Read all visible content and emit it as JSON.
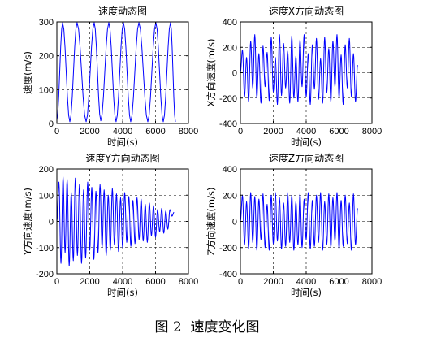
{
  "figure": {
    "caption": "图 2  速度变化图"
  },
  "chart_data": [
    {
      "type": "line",
      "title": "速度动态图",
      "xlabel": "时间(s)",
      "ylabel": "速度(m/s)",
      "xlim": [
        0,
        8000
      ],
      "ylim": [
        0,
        300
      ],
      "xticks": [
        0,
        2000,
        4000,
        6000,
        8000
      ],
      "yticks": [
        0,
        100,
        200,
        300
      ],
      "grid": true,
      "line_color": "#0000ff",
      "series": [
        {
          "x": [
            0,
            350,
            790,
            1230,
            1780,
            2270,
            2670,
            3160,
            3600,
            4050,
            4490,
            4990,
            5530,
            6020,
            6470,
            6910,
            7210
          ],
          "y": [
            10,
            298,
            5,
            298,
            5,
            298,
            8,
            298,
            5,
            298,
            5,
            298,
            5,
            298,
            5,
            298,
            5
          ]
        }
      ]
    },
    {
      "type": "line",
      "title": "速度X方向动态图",
      "xlabel": "时间(s)",
      "ylabel": "X方向速度(m/s)",
      "xlim": [
        0,
        8000
      ],
      "ylim": [
        -400,
        400
      ],
      "xticks": [
        0,
        2000,
        4000,
        6000,
        8000
      ],
      "yticks": [
        -400,
        -200,
        0,
        200,
        400
      ],
      "grid": true,
      "line_color": "#0000ff",
      "series": [
        {
          "x": [
            0,
            125,
            250,
            375,
            500,
            625,
            750,
            875,
            1000,
            1125,
            1250,
            1375,
            1500,
            1625,
            1750,
            1875,
            2000,
            2125,
            2250,
            2375,
            2500,
            2625,
            2750,
            2875,
            3000,
            3125,
            3250,
            3375,
            3500,
            3625,
            3750,
            3875,
            4000,
            4125,
            4250,
            4375,
            4500,
            4625,
            4750,
            4875,
            5000,
            5125,
            5250,
            5375,
            5500,
            5625,
            5750,
            5875,
            6000,
            6125,
            6250,
            6375,
            6500,
            6625,
            6750,
            6875,
            7000,
            7125
          ],
          "y": [
            0,
            180,
            -190,
            120,
            -230,
            250,
            -120,
            300,
            -200,
            150,
            -240,
            210,
            -110,
            160,
            -220,
            280,
            -150,
            120,
            -250,
            300,
            -180,
            230,
            -120,
            170,
            -240,
            290,
            -200,
            130,
            -230,
            260,
            -110,
            300,
            -190,
            150,
            -250,
            220,
            -130,
            270,
            -210,
            110,
            -240,
            280,
            -160,
            190,
            -230,
            250,
            -110,
            300,
            -200,
            140,
            -250,
            220,
            -120,
            270,
            -190,
            150,
            -230,
            60
          ]
        }
      ]
    },
    {
      "type": "line",
      "title": "速度Y方向动态图",
      "xlabel": "时间(s)",
      "ylabel": "Y方向速度(m/s)",
      "xlim": [
        0,
        8000
      ],
      "ylim": [
        -200,
        200
      ],
      "xticks": [
        0,
        2000,
        4000,
        6000,
        8000
      ],
      "yticks": [
        -200,
        -100,
        0,
        100,
        200
      ],
      "grid": true,
      "line_color": "#0000ff",
      "series": [
        {
          "x": [
            0,
            125,
            250,
            375,
            500,
            625,
            750,
            875,
            1000,
            1125,
            1250,
            1375,
            1500,
            1625,
            1750,
            1875,
            2000,
            2125,
            2250,
            2375,
            2500,
            2625,
            2750,
            2875,
            3000,
            3125,
            3250,
            3375,
            3500,
            3625,
            3750,
            3875,
            4000,
            4125,
            4250,
            4375,
            4500,
            4625,
            4750,
            4875,
            5000,
            5125,
            5250,
            5375,
            5500,
            5625,
            5750,
            5875,
            6000,
            6125,
            6250,
            6375,
            6500,
            6625,
            6750,
            6875,
            7000,
            7125
          ],
          "y": [
            0,
            150,
            -160,
            170,
            -120,
            160,
            -170,
            110,
            -150,
            165,
            -130,
            140,
            -160,
            120,
            -140,
            150,
            -110,
            130,
            -145,
            115,
            -120,
            140,
            -100,
            120,
            -130,
            100,
            -110,
            125,
            -90,
            105,
            -115,
            90,
            -100,
            110,
            -80,
            95,
            -95,
            80,
            -85,
            90,
            -70,
            85,
            -75,
            65,
            -80,
            70,
            -55,
            60,
            -60,
            45,
            -40,
            50,
            -45,
            40,
            -30,
            45,
            20,
            35
          ]
        }
      ]
    },
    {
      "type": "line",
      "title": "速度Z方向动态图",
      "xlabel": "时间(s)",
      "ylabel": "Z方向速度(m/s)",
      "xlim": [
        0,
        8000
      ],
      "ylim": [
        -400,
        400
      ],
      "xticks": [
        0,
        2000,
        4000,
        6000,
        8000
      ],
      "yticks": [
        -400,
        -200,
        0,
        200,
        400
      ],
      "grid": true,
      "line_color": "#0000ff",
      "series": [
        {
          "x": [
            0,
            125,
            250,
            375,
            500,
            625,
            750,
            875,
            1000,
            1125,
            1250,
            1375,
            1500,
            1625,
            1750,
            1875,
            2000,
            2125,
            2250,
            2375,
            2500,
            2625,
            2750,
            2875,
            3000,
            3125,
            3250,
            3375,
            3500,
            3625,
            3750,
            3875,
            4000,
            4125,
            4250,
            4375,
            4500,
            4625,
            4750,
            4875,
            5000,
            5125,
            5250,
            5375,
            5500,
            5625,
            5750,
            5875,
            6000,
            6125,
            6250,
            6375,
            6500,
            6625,
            6750,
            6875,
            7000,
            7125
          ],
          "y": [
            0,
            200,
            -180,
            150,
            -210,
            220,
            -160,
            190,
            -220,
            170,
            -140,
            210,
            -200,
            130,
            -220,
            200,
            -170,
            220,
            -150,
            180,
            -210,
            140,
            -190,
            220,
            -160,
            200,
            -220,
            150,
            -180,
            210,
            -200,
            170,
            -140,
            220,
            -210,
            160,
            -190,
            200,
            -160,
            220,
            -220,
            150,
            -180,
            210,
            -200,
            180,
            -150,
            220,
            -210,
            160,
            -190,
            200,
            -170,
            140,
            -220,
            210,
            -180,
            100
          ]
        }
      ]
    }
  ]
}
